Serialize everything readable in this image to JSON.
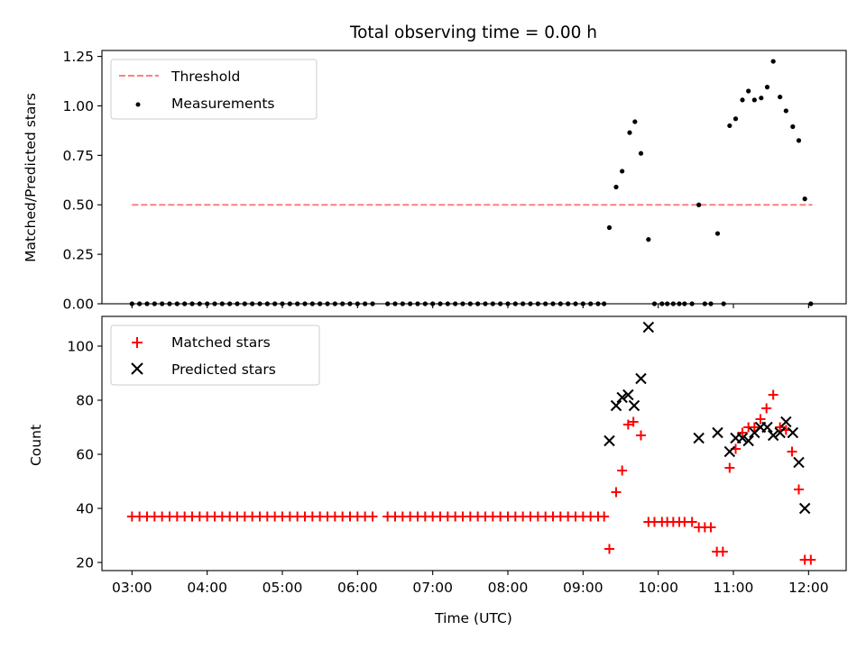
{
  "chart_data": [
    {
      "type": "scatter",
      "title": "Total observing time = 0.00 h",
      "ylabel": "Matched/Predicted stars",
      "ylim": [
        0,
        1.28
      ],
      "yticks": [
        0,
        0.25,
        0.5,
        0.75,
        1.0,
        1.25
      ],
      "ytick_labels": [
        "0.00",
        "0.25",
        "0.50",
        "0.75",
        "1.00",
        "1.25"
      ],
      "xlim_hours": [
        2.6,
        12.5
      ],
      "xticks_hours": [
        3,
        4,
        5,
        6,
        7,
        8,
        9,
        10,
        11,
        12
      ],
      "legend_position": "top-left",
      "threshold": {
        "name": "Threshold",
        "value": 0.5,
        "x_start_hours": 3.0,
        "x_end_hours": 12.05,
        "color": "#ff7f7f"
      },
      "series": [
        {
          "name": "Measurements",
          "color": "#000000",
          "marker": "dot",
          "points": [
            [
              3.0,
              0
            ],
            [
              3.1,
              0
            ],
            [
              3.2,
              0
            ],
            [
              3.3,
              0
            ],
            [
              3.4,
              0
            ],
            [
              3.5,
              0
            ],
            [
              3.6,
              0
            ],
            [
              3.7,
              0
            ],
            [
              3.8,
              0
            ],
            [
              3.9,
              0
            ],
            [
              4.0,
              0
            ],
            [
              4.1,
              0
            ],
            [
              4.2,
              0
            ],
            [
              4.3,
              0
            ],
            [
              4.4,
              0
            ],
            [
              4.5,
              0
            ],
            [
              4.6,
              0
            ],
            [
              4.7,
              0
            ],
            [
              4.8,
              0
            ],
            [
              4.9,
              0
            ],
            [
              5.0,
              0
            ],
            [
              5.1,
              0
            ],
            [
              5.2,
              0
            ],
            [
              5.3,
              0
            ],
            [
              5.4,
              0
            ],
            [
              5.5,
              0
            ],
            [
              5.6,
              0
            ],
            [
              5.7,
              0
            ],
            [
              5.8,
              0
            ],
            [
              5.9,
              0
            ],
            [
              6.0,
              0
            ],
            [
              6.1,
              0
            ],
            [
              6.2,
              0
            ],
            [
              6.4,
              0
            ],
            [
              6.5,
              0
            ],
            [
              6.6,
              0
            ],
            [
              6.7,
              0
            ],
            [
              6.8,
              0
            ],
            [
              6.9,
              0
            ],
            [
              7.0,
              0
            ],
            [
              7.1,
              0
            ],
            [
              7.2,
              0
            ],
            [
              7.3,
              0
            ],
            [
              7.4,
              0
            ],
            [
              7.5,
              0
            ],
            [
              7.6,
              0
            ],
            [
              7.7,
              0
            ],
            [
              7.8,
              0
            ],
            [
              7.9,
              0
            ],
            [
              8.0,
              0
            ],
            [
              8.1,
              0
            ],
            [
              8.2,
              0
            ],
            [
              8.3,
              0
            ],
            [
              8.4,
              0
            ],
            [
              8.5,
              0
            ],
            [
              8.6,
              0
            ],
            [
              8.7,
              0
            ],
            [
              8.8,
              0
            ],
            [
              8.9,
              0
            ],
            [
              9.0,
              0
            ],
            [
              9.1,
              0
            ],
            [
              9.2,
              0
            ],
            [
              9.28,
              0
            ],
            [
              9.35,
              0.385
            ],
            [
              9.44,
              0.59
            ],
            [
              9.52,
              0.67
            ],
            [
              9.62,
              0.865
            ],
            [
              9.69,
              0.92
            ],
            [
              9.77,
              0.76
            ],
            [
              9.87,
              0.325
            ],
            [
              9.95,
              0
            ],
            [
              10.05,
              0
            ],
            [
              10.12,
              0
            ],
            [
              10.2,
              0
            ],
            [
              10.28,
              0
            ],
            [
              10.35,
              0
            ],
            [
              10.45,
              0
            ],
            [
              10.54,
              0.5
            ],
            [
              10.62,
              0
            ],
            [
              10.7,
              0
            ],
            [
              10.79,
              0.355
            ],
            [
              10.87,
              0
            ],
            [
              10.95,
              0.9
            ],
            [
              11.03,
              0.935
            ],
            [
              11.12,
              1.03
            ],
            [
              11.2,
              1.075
            ],
            [
              11.28,
              1.03
            ],
            [
              11.37,
              1.04
            ],
            [
              11.45,
              1.095
            ],
            [
              11.53,
              1.225
            ],
            [
              11.62,
              1.045
            ],
            [
              11.7,
              0.975
            ],
            [
              11.79,
              0.895
            ],
            [
              11.87,
              0.825
            ],
            [
              11.95,
              0.53
            ],
            [
              12.03,
              0
            ]
          ]
        }
      ]
    },
    {
      "type": "scatter",
      "ylabel": "Count",
      "xlabel": "Time (UTC)",
      "ylim": [
        17,
        111
      ],
      "yticks": [
        20,
        40,
        60,
        80,
        100
      ],
      "ytick_labels": [
        "20",
        "40",
        "60",
        "80",
        "100"
      ],
      "xlim_hours": [
        2.6,
        12.5
      ],
      "xticks_hours": [
        3,
        4,
        5,
        6,
        7,
        8,
        9,
        10,
        11,
        12
      ],
      "xtick_labels": [
        "03:00",
        "04:00",
        "05:00",
        "06:00",
        "07:00",
        "08:00",
        "09:00",
        "10:00",
        "11:00",
        "12:00"
      ],
      "legend_position": "top-left",
      "series": [
        {
          "name": "Matched stars",
          "color": "#ff0000",
          "marker": "plus",
          "points": [
            [
              3.0,
              37
            ],
            [
              3.1,
              37
            ],
            [
              3.2,
              37
            ],
            [
              3.3,
              37
            ],
            [
              3.4,
              37
            ],
            [
              3.5,
              37
            ],
            [
              3.6,
              37
            ],
            [
              3.7,
              37
            ],
            [
              3.8,
              37
            ],
            [
              3.9,
              37
            ],
            [
              4.0,
              37
            ],
            [
              4.1,
              37
            ],
            [
              4.2,
              37
            ],
            [
              4.3,
              37
            ],
            [
              4.4,
              37
            ],
            [
              4.5,
              37
            ],
            [
              4.6,
              37
            ],
            [
              4.7,
              37
            ],
            [
              4.8,
              37
            ],
            [
              4.9,
              37
            ],
            [
              5.0,
              37
            ],
            [
              5.1,
              37
            ],
            [
              5.2,
              37
            ],
            [
              5.3,
              37
            ],
            [
              5.4,
              37
            ],
            [
              5.5,
              37
            ],
            [
              5.6,
              37
            ],
            [
              5.7,
              37
            ],
            [
              5.8,
              37
            ],
            [
              5.9,
              37
            ],
            [
              6.0,
              37
            ],
            [
              6.1,
              37
            ],
            [
              6.2,
              37
            ],
            [
              6.4,
              37
            ],
            [
              6.5,
              37
            ],
            [
              6.6,
              37
            ],
            [
              6.7,
              37
            ],
            [
              6.8,
              37
            ],
            [
              6.9,
              37
            ],
            [
              7.0,
              37
            ],
            [
              7.1,
              37
            ],
            [
              7.2,
              37
            ],
            [
              7.3,
              37
            ],
            [
              7.4,
              37
            ],
            [
              7.5,
              37
            ],
            [
              7.6,
              37
            ],
            [
              7.7,
              37
            ],
            [
              7.8,
              37
            ],
            [
              7.9,
              37
            ],
            [
              8.0,
              37
            ],
            [
              8.1,
              37
            ],
            [
              8.2,
              37
            ],
            [
              8.3,
              37
            ],
            [
              8.4,
              37
            ],
            [
              8.5,
              37
            ],
            [
              8.6,
              37
            ],
            [
              8.7,
              37
            ],
            [
              8.8,
              37
            ],
            [
              8.9,
              37
            ],
            [
              9.0,
              37
            ],
            [
              9.1,
              37
            ],
            [
              9.2,
              37
            ],
            [
              9.28,
              37
            ],
            [
              9.35,
              25
            ],
            [
              9.44,
              46
            ],
            [
              9.52,
              54
            ],
            [
              9.6,
              71
            ],
            [
              9.67,
              72
            ],
            [
              9.77,
              67
            ],
            [
              9.87,
              35
            ],
            [
              9.95,
              35
            ],
            [
              10.05,
              35
            ],
            [
              10.12,
              35
            ],
            [
              10.2,
              35
            ],
            [
              10.28,
              35
            ],
            [
              10.35,
              35
            ],
            [
              10.45,
              35
            ],
            [
              10.54,
              33
            ],
            [
              10.62,
              33
            ],
            [
              10.7,
              33
            ],
            [
              10.78,
              24
            ],
            [
              10.86,
              24
            ],
            [
              10.95,
              55
            ],
            [
              11.03,
              62
            ],
            [
              11.12,
              68
            ],
            [
              11.2,
              70
            ],
            [
              11.28,
              70
            ],
            [
              11.36,
              73
            ],
            [
              11.44,
              77
            ],
            [
              11.53,
              82
            ],
            [
              11.62,
              70
            ],
            [
              11.7,
              69
            ],
            [
              11.78,
              61
            ],
            [
              11.87,
              47
            ],
            [
              11.95,
              21
            ],
            [
              12.03,
              21
            ]
          ]
        },
        {
          "name": "Predicted stars",
          "color": "#000000",
          "marker": "x",
          "points": [
            [
              9.35,
              65
            ],
            [
              9.44,
              78
            ],
            [
              9.52,
              81
            ],
            [
              9.6,
              82
            ],
            [
              9.68,
              78
            ],
            [
              9.77,
              88
            ],
            [
              9.87,
              107
            ],
            [
              10.54,
              66
            ],
            [
              10.79,
              68
            ],
            [
              10.95,
              61
            ],
            [
              11.03,
              66
            ],
            [
              11.12,
              66
            ],
            [
              11.2,
              65
            ],
            [
              11.28,
              68
            ],
            [
              11.36,
              70
            ],
            [
              11.45,
              70
            ],
            [
              11.53,
              67
            ],
            [
              11.62,
              68
            ],
            [
              11.7,
              72
            ],
            [
              11.79,
              68
            ],
            [
              11.87,
              57
            ],
            [
              11.95,
              40
            ]
          ]
        }
      ]
    }
  ]
}
